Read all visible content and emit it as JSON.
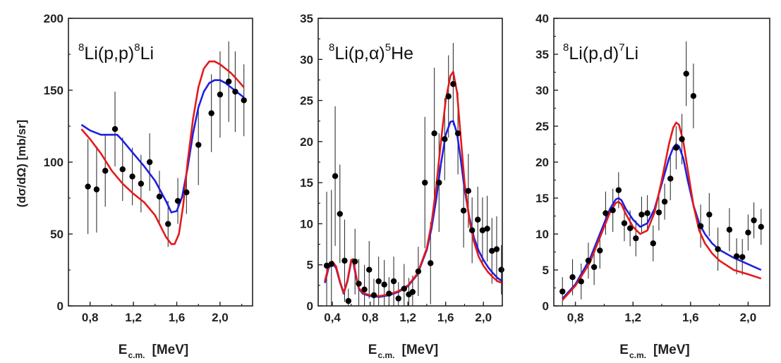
{
  "chart_data": [
    {
      "type": "scatter",
      "reaction": {
        "pre": "8",
        "main1": "Li(p,p)",
        "post": "8",
        "main2": "Li"
      },
      "xlabel": "E",
      "xlabel_sub": "c.m.",
      "xlabel_unit": "[MeV]",
      "ylabel": "(dσ/dΩ)  [mb/sr]",
      "xlim": [
        0.6,
        2.3
      ],
      "ylim": [
        0,
        200
      ],
      "xticks": [
        0.8,
        1.2,
        1.6,
        2.0
      ],
      "xtick_labels": [
        "0,8",
        "1,2",
        "1,6",
        "2,0"
      ],
      "yticks": [
        0,
        50,
        100,
        150,
        200
      ],
      "ytick_labels": [
        "0",
        "50",
        "100",
        "150",
        "200"
      ],
      "points": [
        {
          "x": 0.78,
          "y": 83,
          "err": 33
        },
        {
          "x": 0.86,
          "y": 81,
          "err": 30
        },
        {
          "x": 0.94,
          "y": 94,
          "err": 25
        },
        {
          "x": 1.03,
          "y": 123,
          "err": 26
        },
        {
          "x": 1.1,
          "y": 95,
          "err": 22
        },
        {
          "x": 1.19,
          "y": 90,
          "err": 20
        },
        {
          "x": 1.27,
          "y": 85,
          "err": 20
        },
        {
          "x": 1.35,
          "y": 100,
          "err": 20
        },
        {
          "x": 1.44,
          "y": 76,
          "err": 18
        },
        {
          "x": 1.52,
          "y": 57,
          "err": 16
        },
        {
          "x": 1.61,
          "y": 73,
          "err": 16
        },
        {
          "x": 1.69,
          "y": 79,
          "err": 15
        },
        {
          "x": 1.8,
          "y": 112,
          "err": 28
        },
        {
          "x": 1.92,
          "y": 134,
          "err": 27
        },
        {
          "x": 2.0,
          "y": 147,
          "err": 30
        },
        {
          "x": 2.08,
          "y": 156,
          "err": 28
        },
        {
          "x": 2.14,
          "y": 149,
          "err": 28
        },
        {
          "x": 2.22,
          "y": 143,
          "err": 25
        }
      ],
      "series": [
        {
          "color": "#1f1fe0",
          "x": [
            0.72,
            0.8,
            0.9,
            1.0,
            1.05,
            1.1,
            1.2,
            1.3,
            1.4,
            1.5,
            1.55,
            1.6,
            1.65,
            1.7,
            1.75,
            1.8,
            1.85,
            1.9,
            1.95,
            2.0,
            2.05,
            2.1,
            2.15,
            2.22
          ],
          "y": [
            126,
            122,
            119,
            119,
            119,
            115,
            106,
            97,
            87,
            73,
            65,
            66,
            76,
            96,
            120,
            138,
            149,
            155,
            157,
            157,
            155,
            152,
            149,
            145
          ]
        },
        {
          "color": "#e41a1a",
          "x": [
            0.72,
            0.8,
            0.9,
            1.0,
            1.1,
            1.2,
            1.3,
            1.4,
            1.5,
            1.55,
            1.58,
            1.62,
            1.66,
            1.7,
            1.75,
            1.8,
            1.85,
            1.9,
            1.95,
            2.0,
            2.05,
            2.1,
            2.15,
            2.22
          ],
          "y": [
            123,
            116,
            106,
            94,
            85,
            78,
            72,
            63,
            48,
            43,
            43,
            50,
            70,
            100,
            130,
            152,
            165,
            170,
            170,
            168,
            165,
            162,
            158,
            152
          ]
        }
      ]
    },
    {
      "type": "scatter",
      "reaction": {
        "pre": "8",
        "main1": "Li(p,α)",
        "post": "5",
        "main2": "He"
      },
      "xlabel": "E",
      "xlabel_sub": "c.m.",
      "xlabel_unit": "[MeV]",
      "xlim": [
        0.25,
        2.2
      ],
      "ylim": [
        0,
        35
      ],
      "xticks": [
        0.4,
        0.8,
        1.2,
        1.6,
        2.0
      ],
      "xtick_labels": [
        "0,4",
        "0,8",
        "1,2",
        "1,6",
        "2,0"
      ],
      "yticks": [
        0,
        5,
        10,
        15,
        20,
        25,
        30,
        35
      ],
      "ytick_labels": [
        "0",
        "5",
        "10",
        "15",
        "20",
        "25",
        "30",
        "35"
      ],
      "points": [
        {
          "x": 0.34,
          "y": 4.9,
          "err": 9
        },
        {
          "x": 0.39,
          "y": 5.1,
          "err": 9
        },
        {
          "x": 0.43,
          "y": 15.8,
          "err": 8.5
        },
        {
          "x": 0.48,
          "y": 11.2,
          "err": 6
        },
        {
          "x": 0.53,
          "y": 5.5,
          "err": 5
        },
        {
          "x": 0.57,
          "y": 0.6,
          "err": 1.5
        },
        {
          "x": 0.64,
          "y": 5.4,
          "err": 4
        },
        {
          "x": 0.68,
          "y": 2.7,
          "err": 3
        },
        {
          "x": 0.74,
          "y": 2.0,
          "err": 3
        },
        {
          "x": 0.79,
          "y": 4.4,
          "err": 3.5
        },
        {
          "x": 0.84,
          "y": 1.3,
          "err": 2
        },
        {
          "x": 0.89,
          "y": 3.0,
          "err": 3
        },
        {
          "x": 0.95,
          "y": 2.6,
          "err": 3
        },
        {
          "x": 1.0,
          "y": 1.5,
          "err": 2
        },
        {
          "x": 1.05,
          "y": 3.0,
          "err": 3
        },
        {
          "x": 1.1,
          "y": 0.9,
          "err": 2
        },
        {
          "x": 1.16,
          "y": 2.1,
          "err": 3
        },
        {
          "x": 1.21,
          "y": 1.4,
          "err": 2
        },
        {
          "x": 1.25,
          "y": 1.7,
          "err": 2
        },
        {
          "x": 1.31,
          "y": 4.2,
          "err": 3
        },
        {
          "x": 1.38,
          "y": 15.0,
          "err": 8
        },
        {
          "x": 1.44,
          "y": 5.2,
          "err": 5
        },
        {
          "x": 1.48,
          "y": 21.0,
          "err": 8
        },
        {
          "x": 1.53,
          "y": 15.0,
          "err": 6
        },
        {
          "x": 1.59,
          "y": 20.3,
          "err": 5
        },
        {
          "x": 1.63,
          "y": 25.5,
          "err": 5
        },
        {
          "x": 1.68,
          "y": 27.0,
          "err": 5
        },
        {
          "x": 1.73,
          "y": 21.0,
          "err": 5
        },
        {
          "x": 1.79,
          "y": 11.6,
          "err": 4.5
        },
        {
          "x": 1.84,
          "y": 14.0,
          "err": 4.5
        },
        {
          "x": 1.88,
          "y": 9.2,
          "err": 4
        },
        {
          "x": 1.94,
          "y": 10.5,
          "err": 4
        },
        {
          "x": 1.99,
          "y": 9.2,
          "err": 4
        },
        {
          "x": 2.04,
          "y": 9.4,
          "err": 4
        },
        {
          "x": 2.09,
          "y": 6.7,
          "err": 4
        },
        {
          "x": 2.14,
          "y": 6.9,
          "err": 4
        },
        {
          "x": 2.19,
          "y": 4.4,
          "err": 3
        }
      ],
      "series": [
        {
          "color": "#1f1fe0",
          "x": [
            0.32,
            0.36,
            0.4,
            0.44,
            0.48,
            0.52,
            0.56,
            0.6,
            0.62,
            0.65,
            0.68,
            0.72,
            0.8,
            0.9,
            1.0,
            1.1,
            1.2,
            1.3,
            1.4,
            1.45,
            1.5,
            1.55,
            1.6,
            1.65,
            1.68,
            1.72,
            1.76,
            1.8,
            1.85,
            1.9,
            1.95,
            2.0,
            2.05,
            2.1,
            2.15,
            2.2
          ],
          "y": [
            2.8,
            4.6,
            5.2,
            4.6,
            2.9,
            1.5,
            3.0,
            5.4,
            5.4,
            3.6,
            2.1,
            1.5,
            1.2,
            1.1,
            1.3,
            1.7,
            2.4,
            3.8,
            6.8,
            9.4,
            13.0,
            17.3,
            20.8,
            22.4,
            22.5,
            21.0,
            17.8,
            14.2,
            10.8,
            8.3,
            6.7,
            5.6,
            4.7,
            4.0,
            3.4,
            3.0
          ]
        },
        {
          "color": "#e41a1a",
          "x": [
            0.32,
            0.36,
            0.4,
            0.44,
            0.48,
            0.52,
            0.56,
            0.6,
            0.62,
            0.65,
            0.68,
            0.72,
            0.8,
            0.9,
            1.0,
            1.1,
            1.2,
            1.3,
            1.4,
            1.45,
            1.5,
            1.55,
            1.6,
            1.65,
            1.68,
            1.72,
            1.76,
            1.8,
            1.85,
            1.9,
            1.95,
            2.0,
            2.05,
            2.1,
            2.15,
            2.2
          ],
          "y": [
            3.0,
            4.8,
            5.4,
            4.8,
            3.0,
            1.6,
            3.1,
            5.6,
            5.7,
            3.8,
            2.2,
            1.6,
            1.3,
            1.2,
            1.4,
            1.8,
            2.5,
            3.9,
            7.0,
            10.0,
            14.5,
            20.0,
            25.0,
            28.0,
            28.5,
            26.0,
            20.5,
            15.0,
            10.5,
            7.8,
            6.0,
            4.9,
            4.1,
            3.5,
            3.0,
            2.8
          ]
        }
      ]
    },
    {
      "type": "scatter",
      "reaction": {
        "pre": "8",
        "main1": "Li(p,d)",
        "post": "7",
        "main2": "Li"
      },
      "xlabel": "E",
      "xlabel_sub": "c.m.",
      "xlabel_unit": "[MeV]",
      "xlim": [
        0.65,
        2.15
      ],
      "ylim": [
        0,
        40
      ],
      "xticks": [
        0.8,
        1.2,
        1.6,
        2.0
      ],
      "xtick_labels": [
        "0,8",
        "1,2",
        "1,6",
        "2,0"
      ],
      "yticks": [
        0,
        5,
        10,
        15,
        20,
        25,
        30,
        35,
        40
      ],
      "ytick_labels": [
        "0",
        "5",
        "10",
        "15",
        "20",
        "25",
        "30",
        "35",
        "40"
      ],
      "points": [
        {
          "x": 0.71,
          "y": 2.0,
          "err": 2.0
        },
        {
          "x": 0.78,
          "y": 4.0,
          "err": 2.5
        },
        {
          "x": 0.84,
          "y": 3.4,
          "err": 2.5
        },
        {
          "x": 0.89,
          "y": 6.3,
          "err": 2.5
        },
        {
          "x": 0.93,
          "y": 5.4,
          "err": 2.5
        },
        {
          "x": 0.97,
          "y": 7.7,
          "err": 2.5
        },
        {
          "x": 1.01,
          "y": 12.9,
          "err": 3
        },
        {
          "x": 1.06,
          "y": 13.3,
          "err": 3
        },
        {
          "x": 1.1,
          "y": 16.1,
          "err": 2.5
        },
        {
          "x": 1.14,
          "y": 11.5,
          "err": 2.5
        },
        {
          "x": 1.18,
          "y": 10.8,
          "err": 2.5
        },
        {
          "x": 1.22,
          "y": 9.4,
          "err": 2.5
        },
        {
          "x": 1.26,
          "y": 12.7,
          "err": 2.5
        },
        {
          "x": 1.3,
          "y": 12.9,
          "err": 2.5
        },
        {
          "x": 1.34,
          "y": 8.7,
          "err": 2.5
        },
        {
          "x": 1.38,
          "y": 13.0,
          "err": 2.5
        },
        {
          "x": 1.42,
          "y": 14.5,
          "err": 2.5
        },
        {
          "x": 1.46,
          "y": 17.7,
          "err": 3
        },
        {
          "x": 1.5,
          "y": 22.0,
          "err": 3
        },
        {
          "x": 1.54,
          "y": 23.2,
          "err": 3.5
        },
        {
          "x": 1.57,
          "y": 32.3,
          "err": 4.5
        },
        {
          "x": 1.62,
          "y": 29.2,
          "err": 4.5
        },
        {
          "x": 1.67,
          "y": 11.1,
          "err": 3
        },
        {
          "x": 1.73,
          "y": 12.7,
          "err": 3
        },
        {
          "x": 1.79,
          "y": 7.9,
          "err": 3
        },
        {
          "x": 1.87,
          "y": 10.6,
          "err": 3
        },
        {
          "x": 1.92,
          "y": 6.9,
          "err": 2.5
        },
        {
          "x": 1.96,
          "y": 6.8,
          "err": 2.5
        },
        {
          "x": 2.0,
          "y": 10.2,
          "err": 2.5
        },
        {
          "x": 2.04,
          "y": 11.9,
          "err": 2.5
        },
        {
          "x": 2.09,
          "y": 11.0,
          "err": 2.5
        }
      ],
      "series": [
        {
          "color": "#1f1fe0",
          "x": [
            0.71,
            0.8,
            0.9,
            0.98,
            1.04,
            1.08,
            1.1,
            1.12,
            1.15,
            1.2,
            1.25,
            1.3,
            1.35,
            1.4,
            1.45,
            1.48,
            1.5,
            1.52,
            1.55,
            1.58,
            1.62,
            1.66,
            1.7,
            1.75,
            1.8,
            1.9,
            2.0,
            2.09
          ],
          "y": [
            1.0,
            3.0,
            6.5,
            10.5,
            13.5,
            14.8,
            15.0,
            14.7,
            13.5,
            12.0,
            11.0,
            11.5,
            13.5,
            17.0,
            20.5,
            22.0,
            22.5,
            22.2,
            20.5,
            17.5,
            14.0,
            11.5,
            10.0,
            8.7,
            7.8,
            6.7,
            5.8,
            5.0
          ]
        },
        {
          "color": "#e41a1a",
          "x": [
            0.71,
            0.8,
            0.9,
            0.98,
            1.04,
            1.08,
            1.1,
            1.12,
            1.15,
            1.2,
            1.25,
            1.3,
            1.35,
            1.4,
            1.45,
            1.48,
            1.5,
            1.52,
            1.55,
            1.58,
            1.62,
            1.66,
            1.7,
            1.75,
            1.8,
            1.9,
            2.0,
            2.09
          ],
          "y": [
            0.8,
            2.8,
            6.0,
            10.0,
            13.0,
            14.3,
            14.5,
            14.1,
            12.8,
            11.0,
            10.0,
            10.5,
            13.0,
            17.5,
            22.5,
            24.8,
            25.5,
            25.2,
            22.8,
            19.0,
            14.0,
            10.5,
            8.7,
            7.3,
            6.3,
            5.0,
            4.4,
            3.8
          ]
        }
      ]
    }
  ]
}
